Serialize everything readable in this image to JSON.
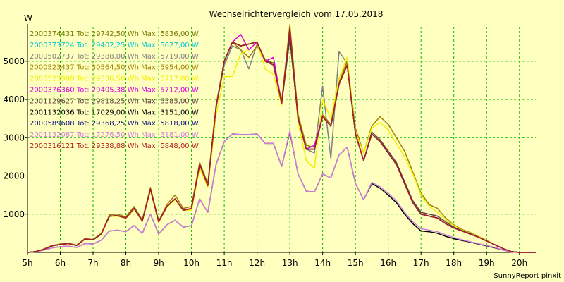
{
  "chart_data": {
    "type": "line",
    "title": "Wechselrichtervergleich vom 17.05.2018",
    "ylabel": "W",
    "xlabel": "",
    "footer": "SunnyReport pinxit",
    "grid": true,
    "legend_position": "top-left",
    "xlim": [
      5,
      20.5
    ],
    "ylim": [
      0,
      5900
    ],
    "x_ticks": [
      5,
      6,
      7,
      8,
      9,
      10,
      11,
      12,
      13,
      14,
      15,
      16,
      17,
      18,
      19,
      20
    ],
    "x_tick_labels": [
      "5h",
      "6h",
      "7h",
      "8h",
      "9h",
      "10h",
      "11h",
      "12h",
      "13h",
      "14h",
      "15h",
      "16h",
      "17h",
      "18h",
      "19h",
      "20h"
    ],
    "y_ticks": [
      1000,
      2000,
      3000,
      4000,
      5000
    ],
    "y_tick_labels": [
      "1000",
      "2000",
      "3000",
      "4000",
      "5000"
    ],
    "x": [
      5.0,
      5.25,
      5.5,
      5.75,
      6.0,
      6.25,
      6.5,
      6.75,
      7.0,
      7.25,
      7.5,
      7.75,
      8.0,
      8.25,
      8.5,
      8.75,
      9.0,
      9.25,
      9.5,
      9.75,
      10.0,
      10.25,
      10.5,
      10.75,
      11.0,
      11.25,
      11.5,
      11.75,
      12.0,
      12.25,
      12.5,
      12.75,
      13.0,
      13.25,
      13.5,
      13.75,
      14.0,
      14.25,
      14.5,
      14.75,
      15.0,
      15.25,
      15.5,
      15.75,
      16.0,
      16.25,
      16.5,
      16.75,
      17.0,
      17.25,
      17.5,
      17.75,
      18.0,
      18.25,
      18.5,
      18.75,
      19.0,
      19.25,
      19.5,
      19.75,
      20.0,
      20.25,
      20.5
    ],
    "series": [
      {
        "name": "2000374431",
        "color": "#7a7a00",
        "legend": "2000374431 Tot: 29742,50 Wh Max: 5836,00 W",
        "values": [
          0,
          20,
          80,
          170,
          210,
          230,
          180,
          350,
          330,
          480,
          950,
          960,
          900,
          1150,
          820,
          1650,
          800,
          1200,
          1400,
          1100,
          1150,
          2300,
          1750,
          3800,
          5000,
          5500,
          5400,
          5450,
          5500,
          5000,
          4900,
          3900,
          5836,
          3500,
          2700,
          2700,
          3550,
          3300,
          4400,
          4900,
          3100,
          2400,
          3100,
          2900,
          2600,
          2300,
          1800,
          1300,
          1000,
          950,
          900,
          750,
          640,
          560,
          480,
          400,
          300,
          200,
          100,
          20,
          0,
          0,
          0
        ]
      },
      {
        "name": "2000373724",
        "color": "#00c8d2",
        "legend": "2000373724 Tot: 29402,25 Wh Max: 5627,00 W",
        "values": [
          0,
          20,
          80,
          170,
          210,
          230,
          180,
          350,
          330,
          480,
          950,
          960,
          900,
          1150,
          820,
          1650,
          800,
          1200,
          1400,
          1100,
          1150,
          2300,
          1750,
          3800,
          5000,
          5500,
          5400,
          5450,
          5500,
          5000,
          4950,
          3900,
          5627,
          3500,
          2700,
          2700,
          3550,
          3300,
          4400,
          4900,
          3100,
          2400,
          3100,
          2900,
          2600,
          2300,
          1800,
          1300,
          1000,
          950,
          900,
          750,
          640,
          560,
          480,
          400,
          300,
          200,
          100,
          20,
          0,
          0,
          0
        ]
      },
      {
        "name": "2000502737",
        "color": "#808080",
        "legend": "2000502737 Tot: 29388,00 Wh Max: 5719,00 W",
        "values": [
          0,
          20,
          80,
          170,
          210,
          230,
          180,
          350,
          330,
          480,
          950,
          960,
          900,
          1150,
          820,
          1650,
          800,
          1200,
          1400,
          1100,
          1150,
          2300,
          1750,
          3800,
          4900,
          5400,
          5300,
          4800,
          5450,
          5000,
          4900,
          3900,
          5719,
          3500,
          2700,
          2600,
          4350,
          2450,
          5250,
          4950,
          3100,
          2400,
          3100,
          2900,
          2600,
          2300,
          1800,
          1300,
          1000,
          950,
          900,
          750,
          640,
          560,
          480,
          400,
          300,
          200,
          100,
          20,
          0,
          0,
          0
        ]
      },
      {
        "name": "2000523437",
        "color": "#a08000",
        "legend": "2000523437 Tot: 30564,50 Wh Max: 5954,00 W",
        "values": [
          0,
          20,
          90,
          180,
          220,
          240,
          190,
          360,
          340,
          500,
          980,
          1000,
          930,
          1200,
          850,
          1700,
          820,
          1250,
          1500,
          1150,
          1200,
          2350,
          1800,
          3850,
          5000,
          5500,
          5300,
          5100,
          5400,
          5050,
          4950,
          3950,
          5954,
          3600,
          2800,
          2750,
          3600,
          3350,
          4450,
          5000,
          3250,
          2600,
          3300,
          3550,
          3350,
          3000,
          2650,
          2100,
          1550,
          1250,
          1150,
          900,
          720,
          600,
          520,
          420,
          320,
          200,
          100,
          20,
          0,
          0,
          0
        ]
      },
      {
        "name": "2000523989",
        "color": "#f0f000",
        "legend": "2000523989 Tot: 29336,50 Wh Max: 5717,00 W",
        "values": [
          0,
          20,
          80,
          170,
          210,
          230,
          180,
          350,
          330,
          480,
          940,
          950,
          890,
          1130,
          810,
          1620,
          790,
          1180,
          1380,
          1100,
          1100,
          2200,
          1700,
          3600,
          4600,
          4600,
          5200,
          5300,
          5500,
          4800,
          4650,
          3850,
          5717,
          3400,
          2400,
          2200,
          4000,
          3500,
          4550,
          5100,
          3150,
          2600,
          3250,
          3400,
          3200,
          2850,
          2500,
          2050,
          1500,
          1200,
          1050,
          850,
          700,
          580,
          500,
          420,
          320,
          200,
          100,
          20,
          0,
          0,
          0
        ]
      },
      {
        "name": "2000376360",
        "color": "#e000e0",
        "legend": "2000376360 Tot: 29405,38 Wh Max: 5712,00 W",
        "values": [
          0,
          20,
          80,
          170,
          210,
          230,
          180,
          350,
          330,
          480,
          950,
          960,
          900,
          1150,
          820,
          1650,
          800,
          1200,
          1400,
          1100,
          1150,
          2300,
          1750,
          3800,
          5000,
          5500,
          5700,
          5300,
          5500,
          5000,
          5100,
          3900,
          5712,
          3500,
          2700,
          2800,
          3550,
          3300,
          4400,
          4900,
          3100,
          2400,
          3100,
          2900,
          2600,
          2300,
          1800,
          1300,
          1000,
          950,
          900,
          750,
          640,
          560,
          480,
          400,
          300,
          200,
          100,
          20,
          0,
          0,
          0
        ]
      },
      {
        "name": "2001129627",
        "color": "#604040",
        "legend": "2001129627 Tot: 29818,25 Wh Max: 5585,00 W",
        "values": [
          0,
          20,
          80,
          170,
          210,
          230,
          180,
          350,
          330,
          480,
          950,
          960,
          900,
          1150,
          820,
          1650,
          800,
          1200,
          1400,
          1100,
          1150,
          2300,
          1750,
          3800,
          5000,
          5500,
          5400,
          5450,
          5500,
          5000,
          4950,
          3900,
          5585,
          3500,
          2700,
          2700,
          3550,
          3300,
          4400,
          4900,
          3100,
          2400,
          3150,
          2950,
          2650,
          2350,
          1850,
          1350,
          1050,
          1000,
          950,
          800,
          660,
          570,
          490,
          400,
          300,
          200,
          100,
          20,
          0,
          0,
          0
        ]
      },
      {
        "name": "2001132036",
        "color": "#000000",
        "legend": "2001132036 Tot: 17029,00 Wh Max: 3151,00 W",
        "values": [
          0,
          15,
          60,
          120,
          150,
          160,
          130,
          230,
          220,
          320,
          560,
          580,
          540,
          700,
          500,
          1000,
          480,
          720,
          840,
          660,
          700,
          1400,
          1050,
          2300,
          2900,
          3100,
          3080,
          3080,
          3100,
          2850,
          2850,
          2250,
          3151,
          2050,
          1600,
          1580,
          2050,
          1950,
          2550,
          2750,
          1800,
          1380,
          1800,
          1680,
          1500,
          1300,
          1000,
          750,
          560,
          540,
          500,
          420,
          360,
          310,
          270,
          220,
          170,
          120,
          60,
          10,
          0,
          0,
          0
        ]
      },
      {
        "name": "2000589608",
        "color": "#101080",
        "legend": "2000589608 Tot: 29368,25 Wh Max: 5818,00 W",
        "values": [
          0,
          20,
          80,
          170,
          210,
          230,
          180,
          350,
          330,
          480,
          950,
          960,
          900,
          1150,
          820,
          1650,
          800,
          1200,
          1400,
          1100,
          1150,
          2300,
          1750,
          3800,
          5000,
          5500,
          5400,
          5450,
          5500,
          5000,
          4900,
          3900,
          5818,
          3500,
          2700,
          2700,
          3550,
          3300,
          4400,
          4900,
          3100,
          2400,
          3100,
          2900,
          2600,
          2300,
          1800,
          1300,
          1000,
          950,
          900,
          750,
          640,
          560,
          480,
          400,
          300,
          200,
          100,
          20,
          0,
          0,
          0
        ]
      },
      {
        "name": "2001132087",
        "color": "#d080e0",
        "legend": "2001132087 Tot: 17276,50 Wh Max: 3181,00 W",
        "values": [
          0,
          15,
          60,
          120,
          150,
          160,
          130,
          230,
          220,
          320,
          560,
          580,
          540,
          700,
          500,
          1000,
          480,
          720,
          840,
          660,
          700,
          1400,
          1050,
          2300,
          2900,
          3100,
          3080,
          3080,
          3100,
          2850,
          2850,
          2250,
          3181,
          2050,
          1600,
          1580,
          2050,
          1950,
          2550,
          2750,
          1800,
          1380,
          1830,
          1720,
          1550,
          1350,
          1050,
          800,
          620,
          580,
          540,
          460,
          390,
          330,
          280,
          230,
          180,
          130,
          60,
          10,
          0,
          0,
          0
        ]
      },
      {
        "name": "2000316121",
        "color": "#b02020",
        "legend": "2000316121 Tot: 29338,88 Wh Max: 5848,00 W",
        "values": [
          0,
          20,
          80,
          170,
          210,
          230,
          180,
          350,
          330,
          480,
          950,
          960,
          900,
          1150,
          820,
          1650,
          800,
          1200,
          1400,
          1100,
          1150,
          2300,
          1750,
          3800,
          5000,
          5500,
          5400,
          5450,
          5500,
          5000,
          4900,
          3900,
          5848,
          3500,
          2700,
          2700,
          3550,
          3300,
          4400,
          4900,
          3100,
          2400,
          3100,
          2900,
          2600,
          2300,
          1800,
          1300,
          1000,
          950,
          900,
          750,
          640,
          560,
          480,
          400,
          300,
          200,
          100,
          20,
          0,
          0,
          0
        ]
      }
    ]
  },
  "colors": {
    "background": "#ffffc0",
    "grid": "#00c000"
  }
}
